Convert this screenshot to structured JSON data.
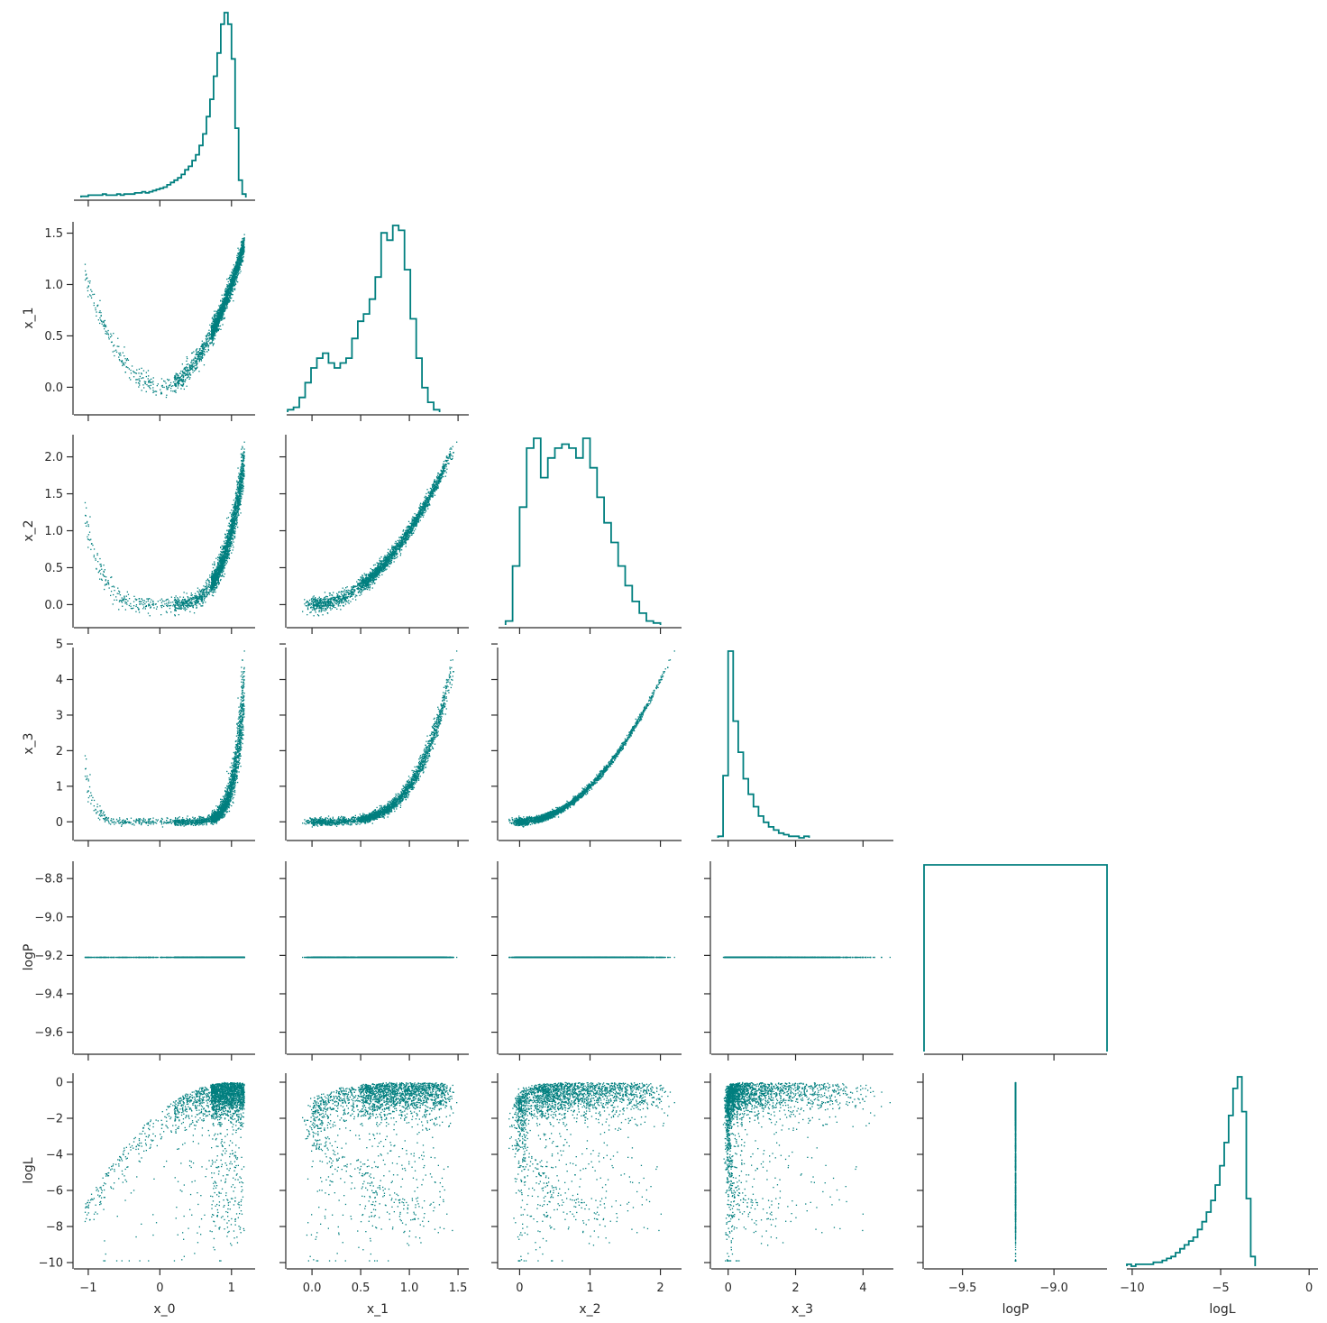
{
  "chart_data": {
    "type": "scatter",
    "variables": [
      "x_0",
      "x_1",
      "x_2",
      "x_3",
      "logP",
      "logL"
    ],
    "axis_labels": [
      "x_0",
      "x_1",
      "x_2",
      "x_3",
      "logP",
      "logL"
    ],
    "x_ticks": [
      [
        -1,
        0,
        1
      ],
      [
        0.0,
        0.5,
        1.0,
        1.5
      ],
      [
        0,
        1,
        2
      ],
      [
        0,
        2,
        4
      ],
      [
        -9.5,
        -9.0
      ],
      [
        -10,
        -5,
        0
      ]
    ],
    "x_tick_labels": [
      [
        "−1",
        "0",
        "1"
      ],
      [
        "0.0",
        "0.5",
        "1.0",
        "1.5"
      ],
      [
        "0",
        "1",
        "2"
      ],
      [
        "0",
        "2",
        "4"
      ],
      [
        "−9.5",
        "−9.0"
      ],
      [
        "−10",
        "−5",
        "0"
      ]
    ],
    "y_ticks": [
      null,
      [
        0.0,
        0.5,
        1.0,
        1.5
      ],
      [
        0.0,
        0.5,
        1.0,
        1.5,
        2.0
      ],
      [
        0,
        1,
        2,
        3,
        4,
        5
      ],
      [
        -9.6,
        -9.4,
        -9.2,
        -9.0,
        -8.8
      ],
      [
        -10,
        -8,
        -6,
        -4,
        -2,
        0
      ]
    ],
    "y_tick_labels": [
      null,
      [
        "0.0",
        "0.5",
        "1.0",
        "1.5"
      ],
      [
        "0.0",
        "0.5",
        "1.0",
        "1.5",
        "2.0"
      ],
      [
        "0",
        "1",
        "2",
        "3",
        "4",
        "5"
      ],
      [
        "−9.6",
        "−9.4",
        "−9.2",
        "−9.0",
        "−8.8"
      ],
      [
        "−10",
        "−8",
        "−6",
        "−4",
        "−2",
        "0"
      ]
    ],
    "ranges": [
      [
        -1.2,
        1.33
      ],
      [
        -0.26,
        1.61
      ],
      [
        -0.3,
        2.3
      ],
      [
        -0.5,
        4.9
      ],
      [
        -9.71,
        -8.71
      ],
      [
        -10.3,
        0.5
      ]
    ],
    "color": "#007f7f",
    "grid": false,
    "diagonal_histograms": [
      {
        "variable": "x_0",
        "x_start": -1.1,
        "bin_width": 0.05,
        "counts": [
          1,
          1,
          2,
          2,
          2,
          2,
          3,
          2,
          2,
          2,
          3,
          2,
          3,
          3,
          3,
          4,
          4,
          5,
          4,
          5,
          6,
          7,
          8,
          9,
          11,
          13,
          15,
          17,
          20,
          24,
          27,
          32,
          37,
          45,
          55,
          70,
          85,
          105,
          125,
          150,
          160,
          150,
          120,
          60,
          15,
          3
        ]
      },
      {
        "variable": "x_1",
        "x_start": -0.25,
        "bin_width": 0.06,
        "counts": [
          1,
          2,
          6,
          12,
          18,
          22,
          24,
          20,
          18,
          20,
          22,
          30,
          37,
          40,
          46,
          55,
          73,
          70,
          76,
          74,
          58,
          38,
          22,
          10,
          4,
          1
        ]
      },
      {
        "variable": "x_2",
        "x_start": -0.2,
        "bin_width": 0.1,
        "counts": [
          2,
          30,
          60,
          90,
          95,
          75,
          85,
          90,
          92,
          90,
          85,
          95,
          80,
          65,
          52,
          42,
          30,
          20,
          12,
          6,
          2,
          1
        ]
      },
      {
        "variable": "x_3",
        "x_start": -0.3,
        "bin_width": 0.15,
        "counts": [
          1,
          40,
          120,
          75,
          55,
          38,
          28,
          20,
          14,
          10,
          7,
          5,
          3,
          2,
          1,
          1,
          0,
          1
        ]
      },
      {
        "variable": "logP",
        "x_start": -9.71,
        "bin_width": 1.0,
        "counts": [
          1
        ]
      },
      {
        "variable": "logL",
        "x_start": -10.3,
        "bin_width": 0.25,
        "counts": [
          1,
          0,
          1,
          1,
          1,
          1,
          2,
          2,
          3,
          4,
          5,
          7,
          9,
          11,
          13,
          15,
          19,
          23,
          28,
          34,
          42,
          52,
          64,
          78,
          92,
          98,
          80,
          35,
          5
        ]
      }
    ],
    "logP_value": -9.21,
    "scatter_sample_size": 2400
  }
}
